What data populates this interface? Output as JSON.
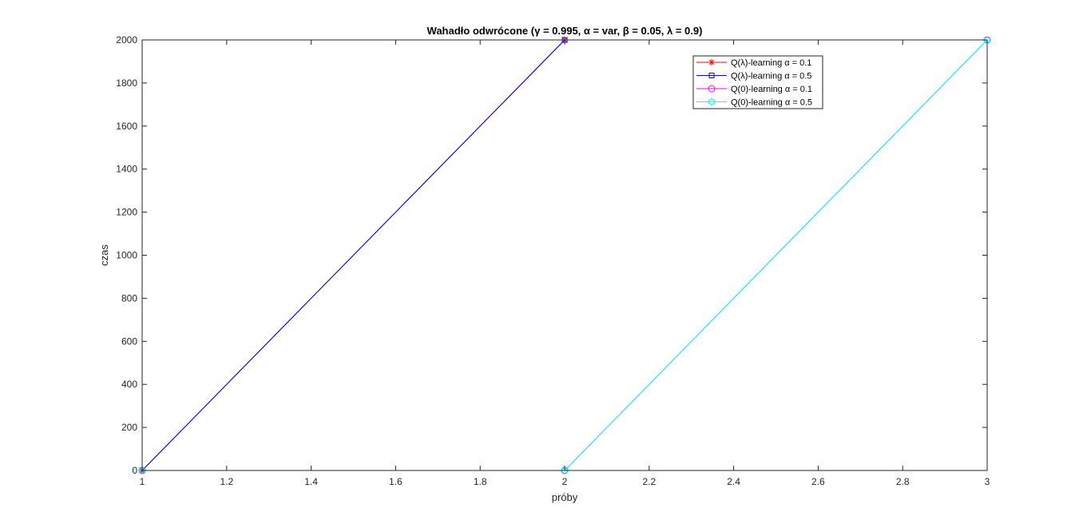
{
  "chart_data": {
    "type": "line",
    "title": "Wahadło odwrócone (γ = 0.995, α = var, β = 0.05, λ = 0.9)",
    "xlabel": "próby",
    "ylabel": "czas",
    "xlim": [
      1,
      3
    ],
    "ylim": [
      0,
      2000
    ],
    "xticks": [
      1,
      1.2,
      1.4,
      1.6,
      1.8,
      2,
      2.2,
      2.4,
      2.6,
      2.8,
      3
    ],
    "xtick_labels": [
      "1",
      "1.2",
      "1.4",
      "1.6",
      "1.8",
      "2",
      "2.2",
      "2.4",
      "2.6",
      "2.8",
      "3"
    ],
    "yticks": [
      0,
      200,
      400,
      600,
      800,
      1000,
      1200,
      1400,
      1600,
      1800,
      2000
    ],
    "ytick_labels": [
      "0",
      "200",
      "400",
      "600",
      "800",
      "1000",
      "1200",
      "1400",
      "1600",
      "1800",
      "2000"
    ],
    "grid": false,
    "legend_position": "top-right",
    "series": [
      {
        "name": "Q(λ)-learning α = 0.1",
        "color": "#ff0000",
        "marker": "star",
        "x": [
          1,
          2
        ],
        "y": [
          0,
          2000
        ]
      },
      {
        "name": "Q(λ)-learning α = 0.5",
        "color": "#0000ff",
        "marker": "square",
        "x": [
          1,
          2
        ],
        "y": [
          0,
          2000
        ]
      },
      {
        "name": "Q(0)-learning α = 0.1",
        "color": "#ff00ff",
        "marker": "circle",
        "x": [
          1,
          2,
          3
        ],
        "y": [
          0,
          0,
          2000
        ]
      },
      {
        "name": "Q(0)-learning α = 0.5",
        "color": "#00ffff",
        "marker": "hexagram",
        "x": [
          1,
          2,
          3
        ],
        "y": [
          0,
          0,
          2000
        ]
      }
    ]
  }
}
